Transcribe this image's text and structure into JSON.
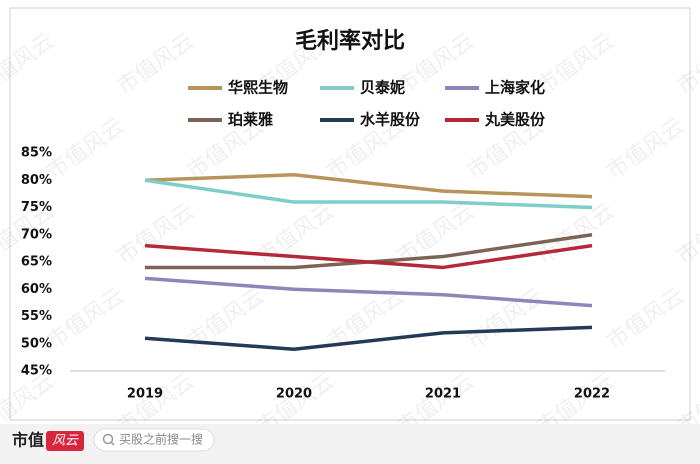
{
  "chart_data": {
    "type": "line",
    "title": "毛利率对比",
    "categories": [
      "2019",
      "2020",
      "2021",
      "2022"
    ],
    "series": [
      {
        "name": "华熙生物",
        "color": "#b8935a",
        "values": [
          80,
          81,
          78,
          77
        ]
      },
      {
        "name": "贝泰妮",
        "color": "#7ecdc8",
        "values": [
          80,
          76,
          76,
          75
        ]
      },
      {
        "name": "上海家化",
        "color": "#8e86b8",
        "values": [
          62,
          60,
          59,
          57
        ]
      },
      {
        "name": "珀莱雅",
        "color": "#7d6355",
        "values": [
          64,
          64,
          66,
          70
        ]
      },
      {
        "name": "水羊股份",
        "color": "#243858",
        "values": [
          51,
          49,
          52,
          53
        ]
      },
      {
        "name": "丸美股份",
        "color": "#b5283a",
        "values": [
          68,
          66,
          64,
          68
        ]
      }
    ],
    "ylim": [
      45,
      85
    ],
    "yticks": [
      {
        "value": 45,
        "label": "45%"
      },
      {
        "value": 50,
        "label": "50%"
      },
      {
        "value": 55,
        "label": "55%"
      },
      {
        "value": 60,
        "label": "60%"
      },
      {
        "value": 65,
        "label": "65%"
      },
      {
        "value": 70,
        "label": "70%"
      },
      {
        "value": 75,
        "label": "75%"
      },
      {
        "value": 80,
        "label": "80%"
      },
      {
        "value": 85,
        "label": "85%"
      }
    ],
    "grid": false
  },
  "watermark": "市值风云",
  "footer": {
    "logo_left": "市值",
    "logo_right": "风云",
    "search": "买股之前搜一搜"
  }
}
